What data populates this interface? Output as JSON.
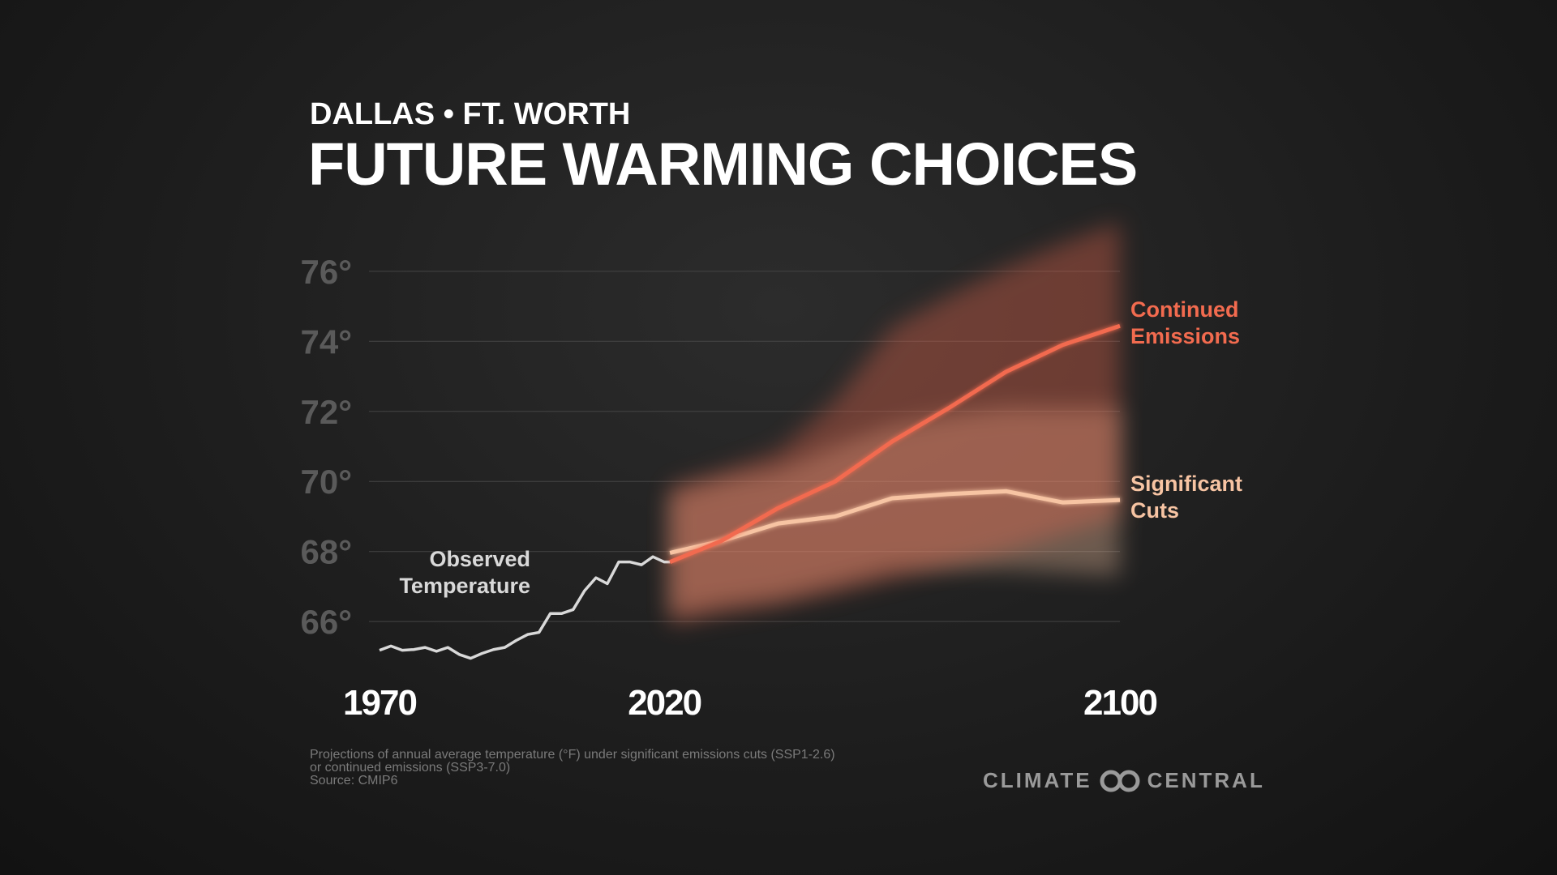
{
  "chart_data": {
    "type": "line",
    "subtitle": "DALLAS • FT. WORTH",
    "title": "FUTURE WARMING CHOICES",
    "xlim": [
      1970,
      2100
    ],
    "xticks": [
      1970,
      2020,
      2100
    ],
    "ylim": [
      64.5,
      77.5
    ],
    "yticks": [
      {
        "value": 66,
        "label": "66°"
      },
      {
        "value": 68,
        "label": "68°"
      },
      {
        "value": 70,
        "label": "70°"
      },
      {
        "value": 72,
        "label": "72°"
      },
      {
        "value": 74,
        "label": "74°"
      },
      {
        "value": 76,
        "label": "76°"
      }
    ],
    "grid": true,
    "series": [
      {
        "name": "Observed Temperature",
        "color": "#d9d9d9",
        "x": [
          1970,
          1972,
          1974,
          1976,
          1978,
          1980,
          1982,
          1984,
          1986,
          1988,
          1990,
          1992,
          1994,
          1996,
          1998,
          2000,
          2002,
          2004,
          2006,
          2008,
          2010,
          2012,
          2014,
          2016,
          2018,
          2020,
          2021
        ],
        "values": [
          65.18,
          65.3,
          65.18,
          65.2,
          65.26,
          65.15,
          65.26,
          65.06,
          64.95,
          65.09,
          65.2,
          65.26,
          65.46,
          65.63,
          65.69,
          66.23,
          66.23,
          66.34,
          66.88,
          67.25,
          67.08,
          67.7,
          67.7,
          67.62,
          67.85,
          67.7,
          67.7
        ]
      },
      {
        "name": "Significant Cuts",
        "color": "#f7c4a3",
        "x": [
          2021,
          2030,
          2040,
          2050,
          2060,
          2070,
          2080,
          2090,
          2100
        ],
        "values": [
          67.96,
          68.3,
          68.8,
          69.0,
          69.52,
          69.64,
          69.72,
          69.4,
          69.47
        ],
        "band_low": [
          66.2,
          66.5,
          66.7,
          67.1,
          67.5,
          67.5,
          67.5,
          67.4,
          67.3
        ],
        "band_high": [
          69.6,
          70.0,
          70.3,
          71.0,
          71.6,
          71.9,
          72.1,
          72.1,
          72.1
        ]
      },
      {
        "name": "Continued Emissions",
        "color": "#f26b4f",
        "x": [
          2021,
          2030,
          2040,
          2050,
          2060,
          2070,
          2080,
          2090,
          2100
        ],
        "values": [
          67.7,
          68.3,
          69.24,
          70.0,
          71.14,
          72.1,
          73.13,
          73.9,
          74.44
        ],
        "band_low": [
          65.9,
          66.2,
          66.45,
          66.8,
          67.2,
          67.6,
          68.0,
          68.5,
          69.0
        ],
        "band_high": [
          69.86,
          70.3,
          70.86,
          72.3,
          74.4,
          75.3,
          76.1,
          76.8,
          77.4
        ]
      }
    ],
    "footnote": [
      "Projections of annual average temperature (°F) under significant emissions cuts (SSP1-2.6)",
      "or continued emissions (SSP3-7.0)",
      "Source: CMIP6"
    ],
    "logo": [
      "CLIMATE",
      "CENTRAL"
    ]
  }
}
